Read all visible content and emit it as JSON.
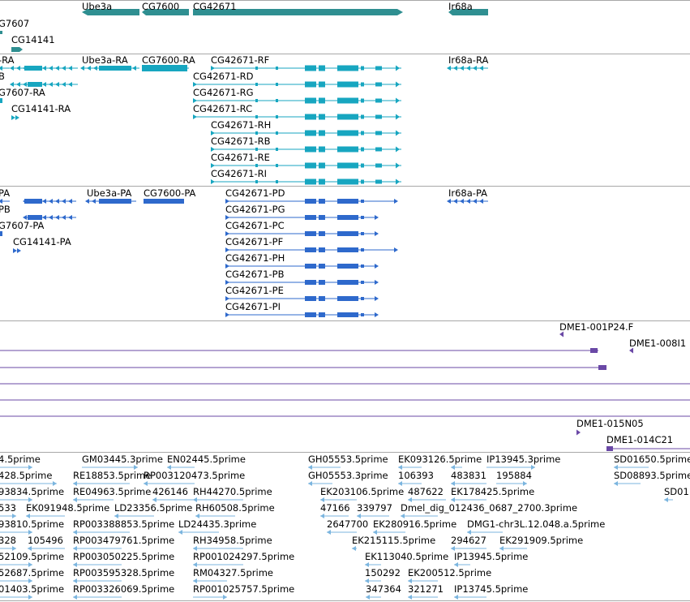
{
  "colors": {
    "gene": "#2f8f91",
    "transcript": "#17a6c0",
    "protein": "#2e69cc",
    "clone": "#6a48a6",
    "est": "#7bb5df",
    "separator": "#a8a8a8"
  },
  "gene_track": {
    "labels": [
      "Ube3a",
      "CG7600",
      "CG42671",
      "Ir68a",
      "G7607",
      "CG14141"
    ]
  },
  "transcript_track": {
    "labels": [
      "-RA",
      "Ube3a-RA",
      "CG7600-RA",
      "CG42671-RF",
      "Ir68a-RA",
      "B",
      "CG42671-RD",
      "G7607-RA",
      "CG42671-RG",
      "CG14141-RA",
      "CG42671-RC",
      "CG42671-RH",
      "CG42671-RB",
      "CG42671-RE",
      "CG42671-RI"
    ]
  },
  "protein_track": {
    "labels": [
      "PA",
      "Ube3a-PA",
      "CG7600-PA",
      "CG42671-PD",
      "Ir68a-PA",
      "PB",
      "CG42671-PG",
      "G7607-PA",
      "CG42671-PC",
      "CG14141-PA",
      "CG42671-PF",
      "CG42671-PH",
      "CG42671-PB",
      "CG42671-PE",
      "CG42671-PI"
    ]
  },
  "clone_track": {
    "labels": [
      "DME1-001P24.F",
      "DME1-008I1",
      "DME1-015N05",
      "DME1-014C21"
    ]
  },
  "est_track": {
    "rows": [
      [
        "4.5prime",
        "GM03445.3prime",
        "EN02445.5prime",
        "GH05553.5prime",
        "EK093126.5prime",
        "IP13945.3prime",
        "SD01650.5prime"
      ],
      [
        "428.5prime",
        "RE18853.5prime",
        "RP003120473.5prime",
        "GH05553.3prime",
        "106393",
        "483831",
        "195884",
        "SD08893.5prime"
      ],
      [
        "93834.5prime",
        "RE04963.5prime",
        "426146",
        "RH44270.5prime",
        "EK203106.5prime",
        "487622",
        "EK178425.5prime",
        "SD01"
      ],
      [
        "533",
        "EK091948.5prime",
        "LD23356.5prime",
        "RH60508.5prime",
        "47166",
        "339797",
        "Dmel_dig_012436_0687_2700.3prime"
      ],
      [
        "93810.5prime",
        "RP003388853.5prime",
        "LD24435.3prime",
        "2647700",
        "EK280916.5prime",
        "DMG1-chr3L.12.048.a.5prime"
      ],
      [
        "328",
        "105496",
        "RP003479761.5prime",
        "RH34958.5prime",
        "EK215115.5prime",
        "294627",
        "EK291909.5prime"
      ],
      [
        "52109.5prime",
        "RP003050225.5prime",
        "RP001024297.5prime",
        "EK113040.5prime",
        "IP13945.5prime"
      ],
      [
        "52687.5prime",
        "RP003595328.5prime",
        "RM04327.5prime",
        "150292",
        "EK200512.5prime"
      ],
      [
        "01403.5prime",
        "RP003326069.5prime",
        "RP001025757.5prime",
        "347364",
        "321271",
        "IP13745.5prime"
      ]
    ]
  }
}
